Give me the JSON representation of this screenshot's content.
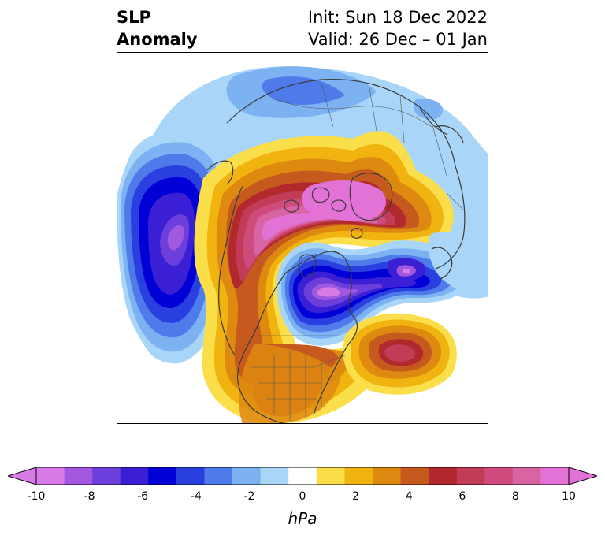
{
  "title": {
    "left_line1": "SLP",
    "left_line2": "Anomaly",
    "right_line1": "Init: Sun 18 Dec 2022",
    "right_line2": "Valid: 26 Dec – 01 Jan"
  },
  "colorbar": {
    "unit": "hPa",
    "tick_labels": [
      "-10",
      "-8",
      "-6",
      "-4",
      "-2",
      "0",
      "2",
      "4",
      "6",
      "8",
      "10"
    ],
    "levels": [
      -10,
      -9,
      -8,
      -7,
      -6,
      -5,
      -4,
      -3,
      -2,
      -1,
      1,
      2,
      3,
      4,
      5,
      6,
      7,
      8,
      9,
      10
    ],
    "colors": [
      "#d87be8",
      "#a257df",
      "#6c3edb",
      "#3a1fd4",
      "#0000d6",
      "#2a3fe0",
      "#4f7aea",
      "#7cb2f2",
      "#a9d6f8",
      "#ffffff",
      "#fbdf4a",
      "#f1b30f",
      "#de8a10",
      "#c65a1e",
      "#b1292c",
      "#c23c57",
      "#cf4b7b",
      "#d964a3",
      "#e372d6"
    ],
    "extend_min_color": "#d87be8",
    "extend_max_color": "#e372d6"
  },
  "map": {
    "projection": "north-polar",
    "field": "SLP anomaly"
  }
}
